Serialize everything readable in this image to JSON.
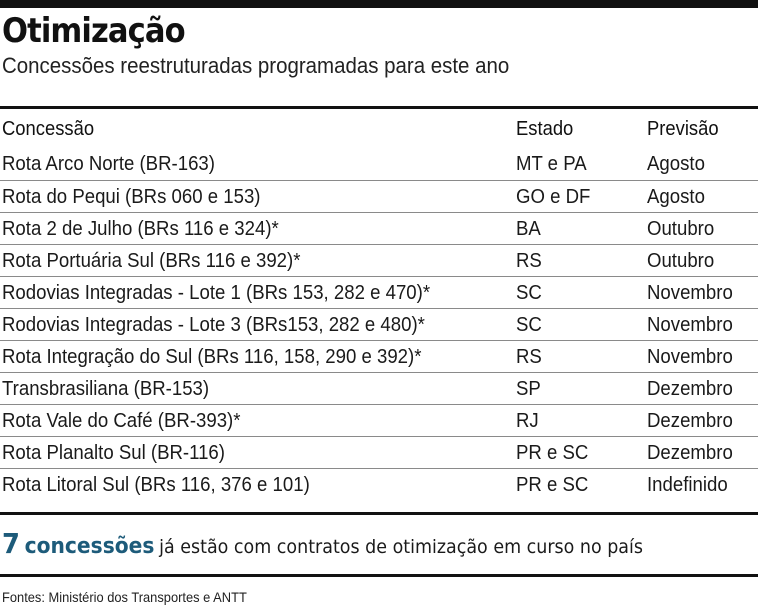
{
  "title": "Otimização",
  "subtitle": "Concessões reestruturadas programadas para este ano",
  "table": {
    "headers": [
      "Concessão",
      "Estado",
      "Previsão"
    ],
    "rows": [
      [
        "Rota Arco Norte (BR-163)",
        "MT e PA",
        "Agosto"
      ],
      [
        "Rota do Pequi (BRs 060 e 153)",
        "GO e DF",
        "Agosto"
      ],
      [
        "Rota 2 de Julho (BRs 116 e 324)*",
        "BA",
        "Outubro"
      ],
      [
        "Rota Portuária Sul (BRs 116 e 392)*",
        "RS",
        "Outubro"
      ],
      [
        "Rodovias Integradas - Lote 1 (BRs 153, 282 e 470)*",
        "SC",
        "Novembro"
      ],
      [
        "Rodovias Integradas - Lote 3 (BRs153, 282 e 480)*",
        "SC",
        "Novembro"
      ],
      [
        "Rota Integração do Sul (BRs 116, 158, 290 e 392)*",
        "RS",
        "Novembro"
      ],
      [
        "Transbrasiliana (BR-153)",
        "SP",
        "Dezembro"
      ],
      [
        "Rota Vale do Café (BR-393)*",
        "RJ",
        "Dezembro"
      ],
      [
        "Rota Planalto Sul (BR-116)",
        "PR e SC",
        "Dezembro"
      ],
      [
        "Rota Litoral Sul (BRs 116, 376 e 101)",
        "PR e SC",
        "Indefinido"
      ]
    ]
  },
  "footnote": {
    "count": "7",
    "highlight": "concessões",
    "text": "já estão com contratos de otimização em curso no país"
  },
  "sources": "Fontes: Ministério dos Transportes e ANTT",
  "colors": {
    "accent": "#1d5b7a",
    "rule": "#111111",
    "divider": "#8a8a8a"
  }
}
